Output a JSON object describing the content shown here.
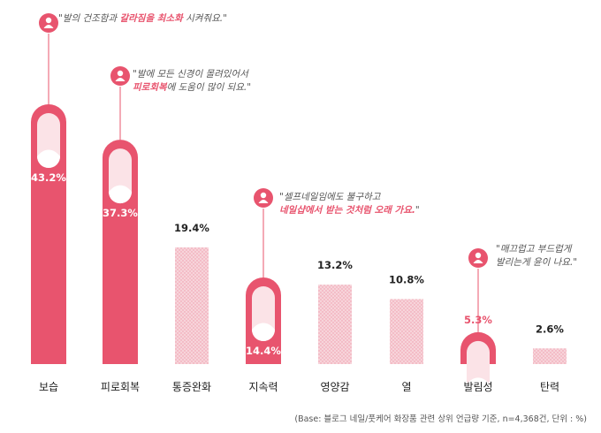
{
  "chart_data": {
    "type": "bar",
    "categories": [
      "보습",
      "피로회복",
      "통증완화",
      "지속력",
      "영양감",
      "열",
      "발림성",
      "탄력"
    ],
    "values": [
      43.2,
      37.3,
      19.4,
      14.4,
      13.2,
      10.8,
      5.3,
      2.6
    ],
    "value_labels": [
      "43.2%",
      "37.3%",
      "19.4%",
      "14.4%",
      "13.2%",
      "10.8%",
      "5.3%",
      "2.6%"
    ],
    "highlighted": [
      "보습",
      "피로회복",
      "지속력",
      "발림성"
    ],
    "ylim": [
      0,
      45
    ],
    "grid": false,
    "colors": {
      "highlight": "#e8546e",
      "capsule": "#fbe3e7",
      "pattern_fill": "#f7d4da",
      "pattern_dot": "#ee9aab",
      "text": "#222222",
      "accent_text": "#e8546e"
    }
  },
  "quotes": [
    {
      "pre": "\"발의 건조함과 ",
      "hl": "갈라짐을 최소화",
      "post": " 시켜줘요.\"",
      "line2": "",
      "line2_hl": "",
      "line2_post": ""
    },
    {
      "pre": "\"발에 모든 신경이 몰려있어서",
      "hl": "",
      "post": "",
      "line2": "",
      "line2_hl": "피로회복",
      "line2_post": "에 도움이 많이 되요.\""
    },
    {
      "pre": "\"셀프네일임에도 불구하고",
      "hl": "",
      "post": "",
      "line2": "",
      "line2_hl": "네일샵에서 받는 것처럼 오래 가요.",
      "line2_post": "\""
    },
    {
      "pre": "\"매끄럽고 부드럽게",
      "hl": "",
      "post": "",
      "line2": "발리는게 윤이 나요.\"",
      "line2_hl": "",
      "line2_post": ""
    }
  ],
  "footnote": "(Base: 블로그 네일/풋케어 화장품 관련 상위 언급량 기준, n=4,368건, 단위 : %)"
}
